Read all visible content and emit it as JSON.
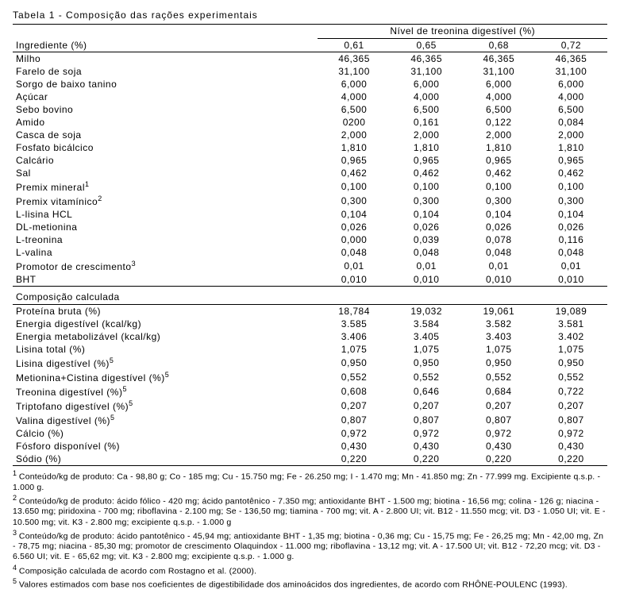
{
  "title": "Tabela 1 -  Composição das rações experimentais",
  "col_label": "Ingrediente (%)",
  "group_label": "Nível de treonina digestível (%)",
  "levels": [
    "0,61",
    "0,65",
    "0,68",
    "0,72"
  ],
  "ingredients": [
    {
      "name": "Milho",
      "v": [
        "46,365",
        "46,365",
        "46,365",
        "46,365"
      ]
    },
    {
      "name": "Farelo de soja",
      "v": [
        "31,100",
        "31,100",
        "31,100",
        "31,100"
      ]
    },
    {
      "name": "Sorgo de baixo tanino",
      "v": [
        "6,000",
        "6,000",
        "6,000",
        "6,000"
      ]
    },
    {
      "name": "Açúcar",
      "v": [
        "4,000",
        "4,000",
        "4,000",
        "4,000"
      ]
    },
    {
      "name": "Sebo bovino",
      "v": [
        "6,500",
        "6,500",
        "6,500",
        "6,500"
      ]
    },
    {
      "name": "Amido",
      "v": [
        "0200",
        "0,161",
        "0,122",
        "0,084"
      ]
    },
    {
      "name": "Casca de soja",
      "v": [
        "2,000",
        "2,000",
        "2,000",
        "2,000"
      ]
    },
    {
      "name": "Fosfato bicálcico",
      "v": [
        "1,810",
        "1,810",
        "1,810",
        "1,810"
      ]
    },
    {
      "name": "Calcário",
      "v": [
        "0,965",
        "0,965",
        "0,965",
        "0,965"
      ]
    },
    {
      "name": "Sal",
      "v": [
        "0,462",
        "0,462",
        "0,462",
        "0,462"
      ]
    },
    {
      "name": "Premix mineral",
      "sup": "1",
      "v": [
        "0,100",
        "0,100",
        "0,100",
        "0,100"
      ]
    },
    {
      "name": "Premix vitamínico",
      "sup": "2",
      "v": [
        "0,300",
        "0,300",
        "0,300",
        "0,300"
      ]
    },
    {
      "name": "L-lisina HCL",
      "v": [
        "0,104",
        "0,104",
        "0,104",
        "0,104"
      ]
    },
    {
      "name": "DL-metionina",
      "v": [
        "0,026",
        "0,026",
        "0,026",
        "0,026"
      ]
    },
    {
      "name": "L-treonina",
      "v": [
        "0,000",
        "0,039",
        "0,078",
        "0,116"
      ]
    },
    {
      "name": "L-valina",
      "v": [
        "0,048",
        "0,048",
        "0,048",
        "0,048"
      ]
    },
    {
      "name": "Promotor de crescimento",
      "sup": "3",
      "v": [
        "0,01",
        "0,01",
        "0,01",
        "0,01"
      ]
    },
    {
      "name": "BHT",
      "v": [
        "0,010",
        "0,010",
        "0,010",
        "0,010"
      ]
    }
  ],
  "calc_header": "Composição calculada",
  "calc": [
    {
      "name": "Proteína bruta (%)",
      "v": [
        "18,784",
        "19,032",
        "19,061",
        "19,089"
      ]
    },
    {
      "name": "Energia digestível  (kcal/kg)",
      "v": [
        "3.585",
        "3.584",
        "3.582",
        "3.581"
      ]
    },
    {
      "name": "Energia metabolizável (kcal/kg)",
      "v": [
        "3.406",
        "3.405",
        "3.403",
        "3.402"
      ]
    },
    {
      "name": "Lisina total (%)",
      "v": [
        "1,075",
        "1,075",
        "1,075",
        "1,075"
      ]
    },
    {
      "name": "Lisina digestível (%)",
      "sup": "5",
      "v": [
        "0,950",
        "0,950",
        "0,950",
        "0,950"
      ]
    },
    {
      "name": "Metionina+Cistina digestível (%)",
      "sup": "5",
      "v": [
        "0,552",
        "0,552",
        "0,552",
        "0,552"
      ]
    },
    {
      "name": "Treonina digestível (%)",
      "sup": "5",
      "v": [
        "0,608",
        "0,646",
        "0,684",
        "0,722"
      ]
    },
    {
      "name": "Triptofano digestível (%)",
      "sup": "5",
      "v": [
        "0,207",
        "0,207",
        "0,207",
        "0,207"
      ]
    },
    {
      "name": "Valina digestível (%)",
      "sup": "5",
      "v": [
        "0,807",
        "0,807",
        "0,807",
        "0,807"
      ]
    },
    {
      "name": "Cálcio (%)",
      "v": [
        "0,972",
        "0,972",
        "0,972",
        "0,972"
      ]
    },
    {
      "name": "Fósforo disponível (%)",
      "v": [
        "0,430",
        "0,430",
        "0,430",
        "0,430"
      ]
    },
    {
      "name": "Sódio (%)",
      "v": [
        "0,220",
        "0,220",
        "0,220",
        "0,220"
      ]
    }
  ],
  "footnotes": [
    {
      "n": "1",
      "t": "Conteúdo/kg de produto: Ca - 98,80 g; Co - 185 mg; Cu - 15.750 mg; Fe - 26.250 mg; I - 1.470 mg; Mn - 41.850 mg; Zn - 77.999 mg. Excipiente q.s.p. - 1.000 g."
    },
    {
      "n": "2",
      "t": "Conteúdo/kg de produto: ácido fólico - 420 mg; ácido pantotênico - 7.350 mg; antioxidante BHT - 1.500 mg; biotina - 16,56 mg; colina - 126 g; niacina - 13.650 mg; piridoxina - 700 mg; riboflavina - 2.100 mg; Se - 136,50 mg; tiamina - 700 mg; vit. A - 2.800 UI; vit. B12 - 11.550 mcg; vit. D3 - 1.050 UI; vit. E - 10.500 mg; vit. K3 - 2.800 mg; excipiente q.s.p. -  1.000 g"
    },
    {
      "n": "3",
      "t": "Conteúdo/kg de produto: ácido pantotênico - 45,94 mg; antioxidante BHT - 1,35 mg; biotina - 0,36 mg; Cu - 15,75 mg; Fe - 26,25 mg; Mn - 42,00 mg, Zn - 78,75 mg; niacina - 85,30 mg; promotor de crescimento Olaquindox - 11.000 mg; riboflavina - 13,12 mg; vit. A - 17.500 UI; vit. B12 - 72,20 mcg; vit. D3 - 6.560 UI; vit. E - 65,62 mg; vit. K3 - 2.800 mg; excipiente q.s.p. - 1.000 g."
    },
    {
      "n": "4",
      "t": "Composição calculada de acordo com Rostagno et al. (2000)."
    },
    {
      "n": "5",
      "t": "Valores estimados com base nos coeficientes de digestibilidade dos aminoácidos dos ingredientes, de acordo com RHÔNE-POULENC (1993)."
    }
  ]
}
